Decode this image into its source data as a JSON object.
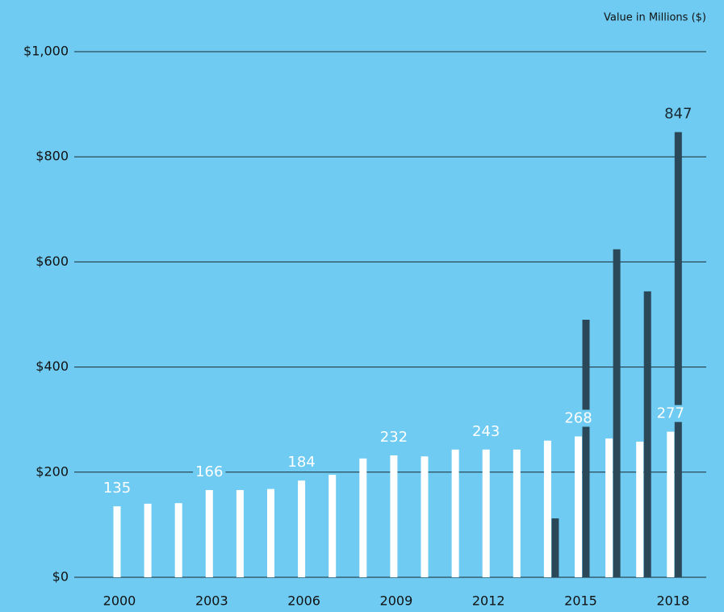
{
  "chart_data": {
    "type": "bar",
    "subtitle": "Value in Millions ($)",
    "categories": [
      "2000",
      null,
      null,
      "2003",
      null,
      null,
      "2006",
      null,
      null,
      "2009",
      null,
      null,
      "2012",
      null,
      null,
      "2015",
      null,
      null,
      "2018"
    ],
    "series": [
      {
        "color": "#ffffff",
        "values": [
          135,
          140,
          141,
          166,
          166,
          168,
          184,
          195,
          226,
          232,
          230,
          243,
          243,
          243,
          260,
          268,
          264,
          258,
          277
        ],
        "value_labels": [
          "135",
          null,
          null,
          "166",
          null,
          null,
          "184",
          null,
          null,
          "232",
          null,
          null,
          "243",
          null,
          null,
          "268",
          null,
          null,
          "277"
        ]
      },
      {
        "color": "#2a4858",
        "values": [
          null,
          null,
          null,
          null,
          null,
          null,
          null,
          null,
          null,
          null,
          null,
          null,
          null,
          null,
          112,
          490,
          624,
          544,
          847
        ],
        "value_labels": [
          null,
          null,
          null,
          null,
          null,
          null,
          null,
          null,
          null,
          null,
          null,
          null,
          null,
          null,
          null,
          null,
          null,
          null,
          "847"
        ]
      }
    ],
    "ylim": [
      0,
      1000
    ],
    "yticks": [
      {
        "value": 0,
        "label": "$0"
      },
      {
        "value": 200,
        "label": "$200"
      },
      {
        "value": 400,
        "label": "$400"
      },
      {
        "value": 600,
        "label": "$600"
      },
      {
        "value": 800,
        "label": "$800"
      },
      {
        "value": 1000,
        "label": "$1,000"
      }
    ],
    "grid": true
  }
}
